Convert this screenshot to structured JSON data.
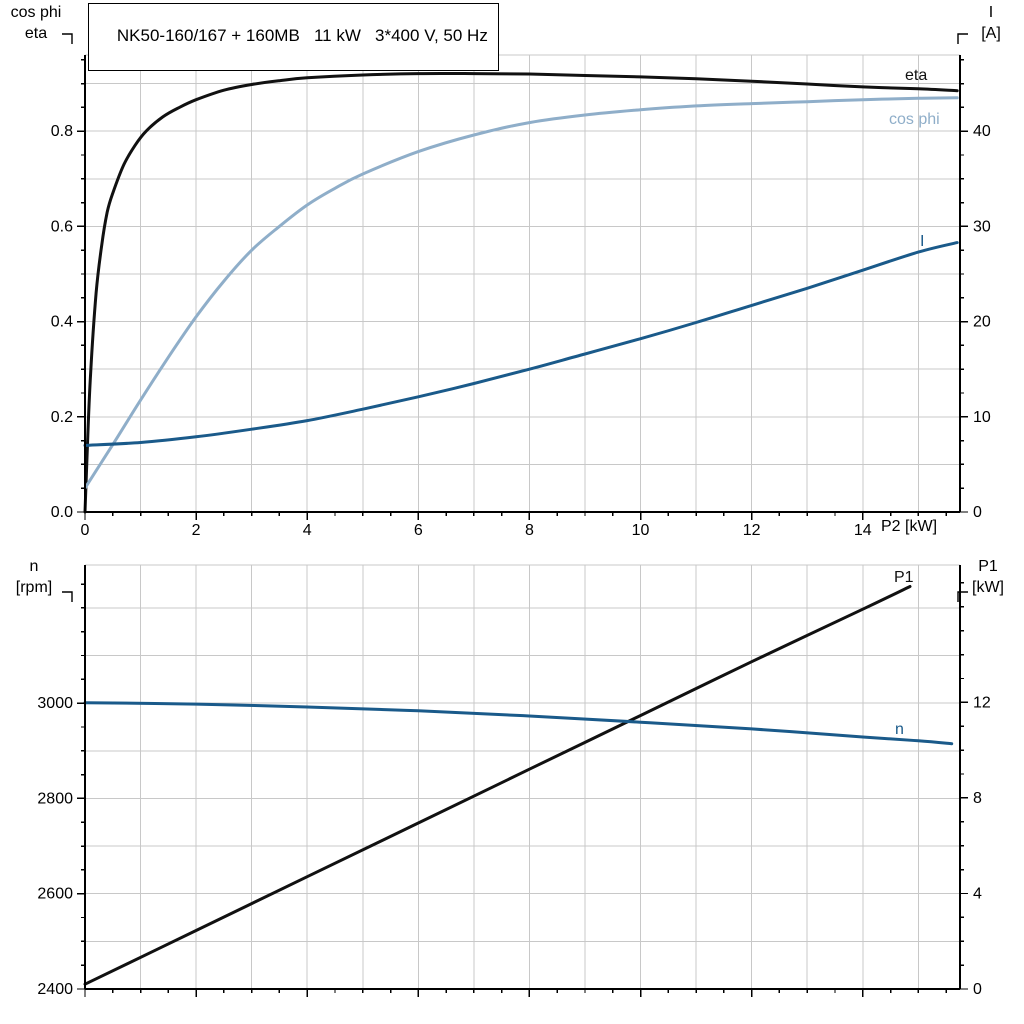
{
  "colors": {
    "black": "#111111",
    "dark_blue": "#1A5A8A",
    "light_blue": "#8FAEC9",
    "grid": "#C8C8C8",
    "axis": "#000000",
    "background": "#FFFFFF"
  },
  "chart_data": [
    {
      "type": "line",
      "name": "motor-electrical-panel",
      "title": "NK50-160/167 + 160MB   11 kW   3*400 V, 50 Hz",
      "legend_position": "curve-end-labels",
      "grid": true,
      "x_axis": {
        "label": "P2 [kW]",
        "min": 0,
        "max": 15.75,
        "grid_step": 1,
        "minor_tick_step": 0.5,
        "major_ticks": [
          0,
          2,
          4,
          6,
          8,
          10,
          12,
          14
        ],
        "major_tick_labels": [
          "0",
          "2",
          "4",
          "6",
          "8",
          "10",
          "12",
          "14"
        ]
      },
      "y_left": {
        "axis_label_lines": [
          "cos phi",
          "eta"
        ],
        "min": 0,
        "max": 0.96,
        "grid_step": 0.1,
        "minor_tick_step": 0.05,
        "major_ticks": [
          0,
          0.2,
          0.4,
          0.6,
          0.8
        ],
        "major_tick_labels": [
          "0.0",
          "0.2",
          "0.4",
          "0.6",
          "0.8"
        ]
      },
      "y_right": {
        "axis_label_lines": [
          "I",
          "[A]"
        ],
        "min": 0,
        "max": 48,
        "minor_tick_step": 2.5,
        "major_ticks": [
          0,
          10,
          20,
          30,
          40
        ],
        "major_tick_labels": [
          "0",
          "10",
          "20",
          "30",
          "40"
        ]
      },
      "series": [
        {
          "name": "eta",
          "axis": "left",
          "color": "black",
          "x": [
            0,
            0.05,
            0.1,
            0.2,
            0.3,
            0.4,
            0.5,
            0.7,
            0.9,
            1.1,
            1.4,
            1.7,
            2,
            2.5,
            3,
            3.5,
            4,
            5,
            6,
            7,
            8,
            9,
            10,
            11,
            12,
            13,
            14,
            15,
            15.7
          ],
          "y": [
            0,
            0.16,
            0.29,
            0.46,
            0.56,
            0.63,
            0.67,
            0.73,
            0.77,
            0.8,
            0.83,
            0.85,
            0.866,
            0.886,
            0.898,
            0.906,
            0.912,
            0.918,
            0.921,
            0.921,
            0.92,
            0.917,
            0.914,
            0.91,
            0.905,
            0.899,
            0.893,
            0.889,
            0.885
          ]
        },
        {
          "name": "cos phi",
          "axis": "left",
          "color": "light_blue",
          "x": [
            0,
            0.3,
            0.6,
            1,
            1.5,
            2,
            2.5,
            3,
            3.5,
            4,
            4.5,
            5,
            6,
            7,
            8,
            9,
            10,
            11,
            12,
            13,
            14,
            15,
            15.7
          ],
          "y": [
            0.05,
            0.105,
            0.16,
            0.235,
            0.325,
            0.41,
            0.485,
            0.55,
            0.6,
            0.645,
            0.68,
            0.71,
            0.757,
            0.792,
            0.818,
            0.834,
            0.845,
            0.853,
            0.858,
            0.862,
            0.866,
            0.869,
            0.87
          ]
        },
        {
          "name": "I",
          "axis": "right",
          "color": "dark_blue",
          "x": [
            0,
            1,
            2,
            3,
            4,
            5,
            6,
            7,
            8,
            9,
            10,
            11,
            12,
            13,
            14,
            15,
            15.7
          ],
          "y": [
            7,
            7.3,
            7.9,
            8.7,
            9.6,
            10.8,
            12.1,
            13.5,
            15,
            16.6,
            18.2,
            19.9,
            21.7,
            23.5,
            25.4,
            27.3,
            28.3
          ]
        }
      ]
    },
    {
      "type": "line",
      "name": "speed-power-panel",
      "title": "",
      "legend_position": "curve-end-labels",
      "grid": true,
      "x_axis": {
        "label": "",
        "min": 0,
        "max": 15.75,
        "grid_step": 1,
        "minor_tick_step": 0.5,
        "major_ticks": [
          0,
          2,
          4,
          6,
          8,
          10,
          12,
          14
        ],
        "major_tick_labels": []
      },
      "y_left": {
        "axis_label_lines": [
          "n",
          "[rpm]"
        ],
        "min": 2400,
        "max": 3290,
        "grid_step": 100,
        "minor_tick_step": 50,
        "major_ticks": [
          2400,
          2600,
          2800,
          3000
        ],
        "major_tick_labels": [
          "2400",
          "2600",
          "2800",
          "3000"
        ]
      },
      "y_right": {
        "axis_label_lines": [
          "P1",
          "[kW]"
        ],
        "min": 0,
        "max": 17.75,
        "minor_tick_step": 1,
        "major_ticks": [
          0,
          4,
          8,
          12
        ],
        "major_tick_labels": [
          "0",
          "4",
          "8",
          "12"
        ]
      },
      "series": [
        {
          "name": "P1",
          "axis": "right",
          "color": "black",
          "x": [
            0,
            2,
            4,
            6,
            8,
            10,
            12,
            14,
            14.85
          ],
          "y": [
            0.2,
            2.45,
            4.7,
            6.95,
            9.2,
            11.45,
            13.7,
            15.9,
            16.85
          ]
        },
        {
          "name": "n",
          "axis": "left",
          "color": "dark_blue",
          "x": [
            0,
            2,
            4,
            6,
            8,
            10,
            12,
            14,
            15,
            15.6
          ],
          "y": [
            3001,
            2998,
            2992,
            2984,
            2973,
            2960,
            2946,
            2929,
            2921,
            2915
          ]
        }
      ]
    }
  ]
}
